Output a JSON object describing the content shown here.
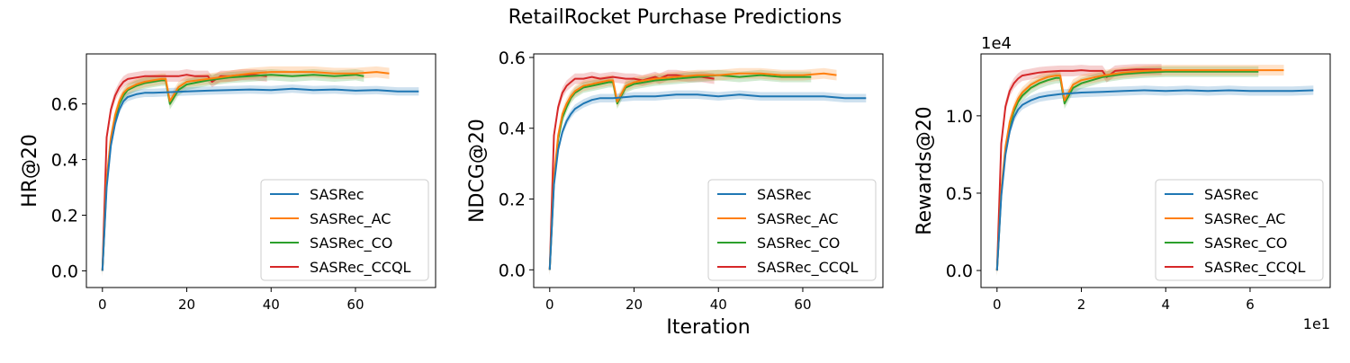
{
  "figure": {
    "title": "RetailRocket Purchase Predictions"
  },
  "colors": {
    "SASRec": "#1f77b4",
    "SASRec_AC": "#ff7f0e",
    "SASRec_CO": "#2ca02c",
    "SASRec_CCQL": "#d62728"
  },
  "chart_data": [
    {
      "type": "line",
      "ylabel": "HR@20",
      "xlabel": "",
      "xlim": [
        -3.8,
        79
      ],
      "ylim": [
        -0.06,
        0.78
      ],
      "xticks": [
        0,
        20,
        40,
        60
      ],
      "xtick_labels": [
        "0",
        "20",
        "40",
        "60"
      ],
      "yticks": [
        0.0,
        0.2,
        0.4,
        0.6
      ],
      "ytick_labels": [
        "0.0",
        "0.2",
        "0.4",
        "0.6"
      ],
      "offset_label": "",
      "legend": {
        "position": "bottom-right",
        "entries": [
          "SASRec",
          "SASRec_AC",
          "SASRec_CO",
          "SASRec_CCQL"
        ]
      },
      "series": [
        {
          "name": "SASRec",
          "x": [
            0,
            1,
            2,
            3,
            4,
            5,
            6,
            8,
            10,
            12,
            15,
            20,
            25,
            30,
            35,
            40,
            45,
            50,
            55,
            60,
            65,
            70,
            75
          ],
          "y": [
            0,
            0.3,
            0.45,
            0.53,
            0.58,
            0.61,
            0.625,
            0.635,
            0.64,
            0.64,
            0.642,
            0.645,
            0.648,
            0.65,
            0.652,
            0.65,
            0.655,
            0.65,
            0.652,
            0.648,
            0.65,
            0.645,
            0.645
          ],
          "band": 0.015
        },
        {
          "name": "SASRec_AC",
          "x": [
            0,
            1,
            2,
            3,
            4,
            5,
            6,
            8,
            10,
            12,
            14,
            15,
            16,
            18,
            20,
            25,
            30,
            35,
            40,
            45,
            50,
            55,
            60,
            65,
            68
          ],
          "y": [
            0,
            0.33,
            0.48,
            0.56,
            0.61,
            0.64,
            0.655,
            0.67,
            0.68,
            0.685,
            0.69,
            0.69,
            0.61,
            0.66,
            0.68,
            0.69,
            0.7,
            0.71,
            0.715,
            0.715,
            0.715,
            0.71,
            0.71,
            0.715,
            0.71
          ],
          "band": 0.02
        },
        {
          "name": "SASRec_CO",
          "x": [
            0,
            1,
            2,
            3,
            4,
            5,
            6,
            8,
            10,
            12,
            14,
            15,
            16,
            18,
            20,
            25,
            30,
            35,
            40,
            45,
            50,
            55,
            60,
            62
          ],
          "y": [
            0,
            0.32,
            0.47,
            0.55,
            0.6,
            0.63,
            0.65,
            0.665,
            0.675,
            0.68,
            0.685,
            0.685,
            0.6,
            0.65,
            0.67,
            0.685,
            0.695,
            0.7,
            0.705,
            0.7,
            0.705,
            0.7,
            0.705,
            0.7
          ],
          "band": 0.02
        },
        {
          "name": "SASRec_CCQL",
          "x": [
            0,
            1,
            2,
            3,
            4,
            5,
            6,
            8,
            10,
            12,
            15,
            18,
            20,
            22,
            25,
            26,
            28,
            30,
            33,
            36,
            39
          ],
          "y": [
            0,
            0.48,
            0.58,
            0.63,
            0.66,
            0.68,
            0.69,
            0.695,
            0.7,
            0.7,
            0.7,
            0.7,
            0.705,
            0.7,
            0.7,
            0.68,
            0.7,
            0.7,
            0.705,
            0.705,
            0.7
          ],
          "band": 0.02
        }
      ]
    },
    {
      "type": "line",
      "ylabel": "NDCG@20",
      "xlabel": "Iteration",
      "xlim": [
        -3.8,
        79
      ],
      "ylim": [
        -0.05,
        0.61
      ],
      "xticks": [
        0,
        20,
        40,
        60
      ],
      "xtick_labels": [
        "0",
        "20",
        "40",
        "60"
      ],
      "yticks": [
        0.0,
        0.2,
        0.4,
        0.6
      ],
      "ytick_labels": [
        "0.0",
        "0.2",
        "0.4",
        "0.6"
      ],
      "offset_label": "",
      "legend": {
        "position": "bottom-right",
        "entries": [
          "SASRec",
          "SASRec_AC",
          "SASRec_CO",
          "SASRec_CCQL"
        ]
      },
      "series": [
        {
          "name": "SASRec",
          "x": [
            0,
            1,
            2,
            3,
            4,
            5,
            6,
            8,
            10,
            12,
            15,
            20,
            25,
            30,
            35,
            40,
            45,
            50,
            55,
            60,
            65,
            70,
            75
          ],
          "y": [
            0,
            0.24,
            0.34,
            0.39,
            0.42,
            0.44,
            0.455,
            0.47,
            0.48,
            0.485,
            0.485,
            0.49,
            0.49,
            0.495,
            0.495,
            0.49,
            0.495,
            0.49,
            0.49,
            0.49,
            0.49,
            0.485,
            0.485
          ],
          "band": 0.012
        },
        {
          "name": "SASRec_AC",
          "x": [
            0,
            1,
            2,
            3,
            4,
            5,
            6,
            8,
            10,
            12,
            14,
            15,
            16,
            18,
            20,
            25,
            30,
            35,
            40,
            45,
            50,
            55,
            60,
            65,
            68
          ],
          "y": [
            0,
            0.26,
            0.38,
            0.44,
            0.47,
            0.49,
            0.505,
            0.52,
            0.525,
            0.53,
            0.535,
            0.535,
            0.475,
            0.52,
            0.53,
            0.54,
            0.545,
            0.55,
            0.55,
            0.555,
            0.555,
            0.55,
            0.55,
            0.555,
            0.55
          ],
          "band": 0.015
        },
        {
          "name": "SASRec_CO",
          "x": [
            0,
            1,
            2,
            3,
            4,
            5,
            6,
            8,
            10,
            12,
            14,
            15,
            16,
            18,
            20,
            25,
            30,
            35,
            40,
            45,
            50,
            55,
            60,
            62
          ],
          "y": [
            0,
            0.25,
            0.37,
            0.43,
            0.46,
            0.485,
            0.5,
            0.515,
            0.52,
            0.525,
            0.53,
            0.53,
            0.47,
            0.515,
            0.525,
            0.535,
            0.54,
            0.545,
            0.55,
            0.545,
            0.55,
            0.545,
            0.545,
            0.545
          ],
          "band": 0.015
        },
        {
          "name": "SASRec_CCQL",
          "x": [
            0,
            1,
            2,
            3,
            4,
            5,
            6,
            8,
            10,
            12,
            15,
            18,
            20,
            22,
            25,
            26,
            28,
            30,
            33,
            36,
            39
          ],
          "y": [
            0,
            0.38,
            0.46,
            0.5,
            0.52,
            0.53,
            0.54,
            0.54,
            0.545,
            0.54,
            0.545,
            0.54,
            0.54,
            0.535,
            0.545,
            0.54,
            0.55,
            0.55,
            0.545,
            0.545,
            0.54
          ],
          "band": 0.015
        }
      ]
    },
    {
      "type": "line",
      "ylabel": "Rewards@20",
      "xlabel": "",
      "xlim": [
        -3.8,
        79
      ],
      "ylim": [
        -1100,
        14000
      ],
      "xticks": [
        0,
        20,
        40,
        60
      ],
      "xtick_labels": [
        "0",
        "2",
        "4",
        "6"
      ],
      "yticks": [
        0,
        5000,
        10000
      ],
      "ytick_labels": [
        "0.0",
        "0.5",
        "1.0"
      ],
      "offset_label": "1e4",
      "x_offset_label": "1e1",
      "legend": {
        "position": "bottom-right",
        "entries": [
          "SASRec",
          "SASRec_AC",
          "SASRec_CO",
          "SASRec_CCQL"
        ]
      },
      "series": [
        {
          "name": "SASRec",
          "x": [
            0,
            1,
            2,
            3,
            4,
            5,
            6,
            8,
            10,
            12,
            15,
            20,
            25,
            30,
            35,
            40,
            45,
            50,
            55,
            60,
            65,
            70,
            75
          ],
          "y": [
            0,
            4800,
            7500,
            9000,
            9900,
            10400,
            10700,
            11000,
            11200,
            11300,
            11400,
            11500,
            11550,
            11600,
            11650,
            11600,
            11650,
            11600,
            11650,
            11600,
            11600,
            11600,
            11650
          ],
          "band": 300
        },
        {
          "name": "SASRec_AC",
          "x": [
            0,
            1,
            2,
            3,
            4,
            5,
            6,
            8,
            10,
            12,
            14,
            15,
            16,
            18,
            20,
            25,
            30,
            35,
            40,
            45,
            50,
            55,
            60,
            65,
            68
          ],
          "y": [
            0,
            5200,
            8000,
            9600,
            10500,
            11100,
            11500,
            12000,
            12300,
            12500,
            12600,
            12600,
            11000,
            12000,
            12300,
            12600,
            12800,
            12900,
            12950,
            12950,
            12950,
            12950,
            12950,
            12950,
            12950
          ],
          "band": 350
        },
        {
          "name": "SASRec_CO",
          "x": [
            0,
            1,
            2,
            3,
            4,
            5,
            6,
            8,
            10,
            12,
            14,
            15,
            16,
            18,
            20,
            25,
            30,
            35,
            40,
            45,
            50,
            55,
            60,
            62
          ],
          "y": [
            0,
            5000,
            7800,
            9400,
            10300,
            10900,
            11300,
            11800,
            12100,
            12300,
            12450,
            12450,
            10800,
            11800,
            12100,
            12500,
            12700,
            12800,
            12850,
            12850,
            12850,
            12850,
            12850,
            12850
          ],
          "band": 350
        },
        {
          "name": "SASRec_CCQL",
          "x": [
            0,
            1,
            2,
            3,
            4,
            5,
            6,
            8,
            10,
            12,
            15,
            18,
            20,
            22,
            25,
            26,
            28,
            30,
            33,
            36,
            39
          ],
          "y": [
            0,
            8200,
            10600,
            11600,
            12100,
            12400,
            12600,
            12700,
            12800,
            12850,
            12900,
            12900,
            12950,
            12900,
            12900,
            12500,
            12900,
            12950,
            13000,
            13000,
            13000
          ],
          "band": 350
        }
      ]
    }
  ]
}
